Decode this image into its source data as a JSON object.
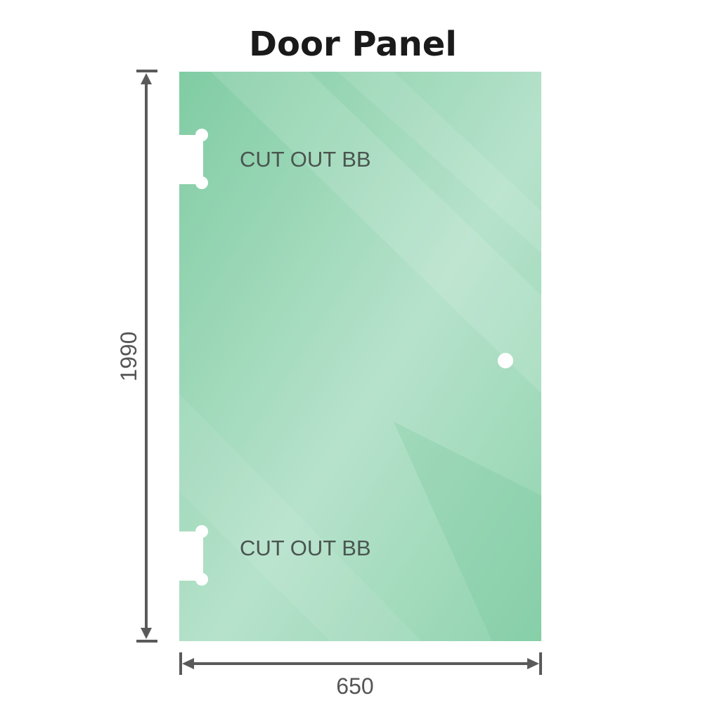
{
  "title": "Door Panel",
  "panel": {
    "glass_color": "#86cfa8",
    "cutouts": [
      {
        "label": "CUT OUT BB"
      },
      {
        "label": "CUT OUT BB"
      }
    ],
    "handle_hole": true
  },
  "dimensions": {
    "height": "1990",
    "width": "650",
    "line_color": "#5a5a5a"
  }
}
